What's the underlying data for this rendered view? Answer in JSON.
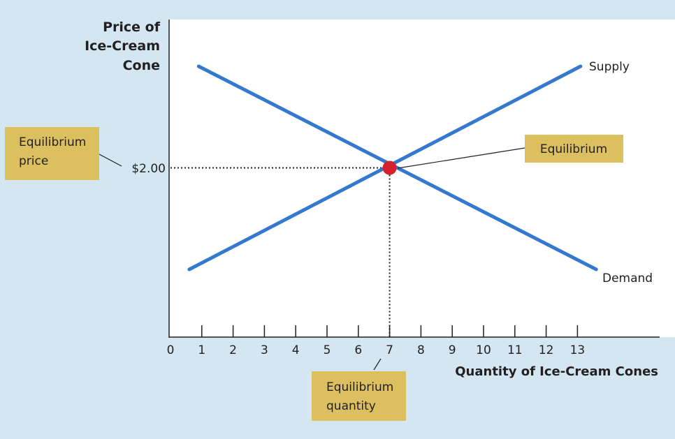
{
  "colors": {
    "background": "#d3e6f2",
    "plot_background": "#ffffff",
    "curve": "#3478cf",
    "equilibrium_point": "#d3212d",
    "callout_box": "#dcc060",
    "text": "#231f20"
  },
  "chart_data": {
    "type": "line",
    "ylabel": [
      "Price of",
      "Ice-Cream",
      "Cone"
    ],
    "xlabel": "Quantity of Ice-Cream Cones",
    "x_ticks": [
      0,
      1,
      2,
      3,
      4,
      5,
      6,
      7,
      8,
      9,
      10,
      11,
      12,
      13
    ],
    "y_tick_label": "$2.00",
    "xlim": [
      0,
      15.5
    ],
    "grid": false,
    "series": [
      {
        "name": "Supply",
        "x": [
          0.6,
          13.1
        ],
        "y": [
          0.8,
          3.2
        ]
      },
      {
        "name": "Demand",
        "x": [
          0.9,
          13.6
        ],
        "y": [
          3.2,
          0.8
        ]
      }
    ],
    "equilibrium": {
      "x": 7,
      "y": 2.0
    },
    "annotations": {
      "equilibrium": [
        "Equilibrium"
      ],
      "equilibrium_price": [
        "Equilibrium",
        "price"
      ],
      "equilibrium_quantity": [
        "Equilibrium",
        "quantity"
      ]
    }
  }
}
